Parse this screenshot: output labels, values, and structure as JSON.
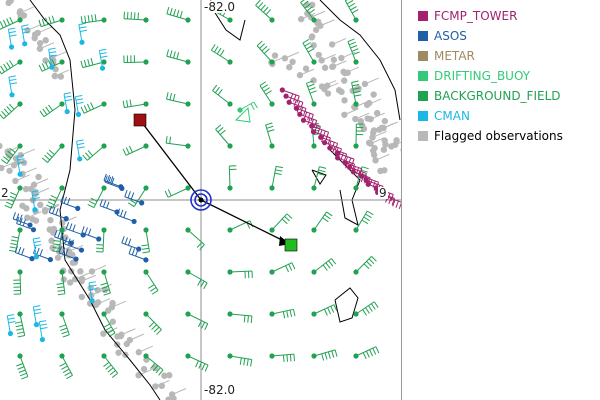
{
  "map": {
    "grid_labels": {
      "top_longitude": "-82.0",
      "bottom_longitude": "-82.0",
      "left_latitude": "2",
      "right_latitude": "9"
    },
    "colors": {
      "fcmp_tower": "#a3216e",
      "asos": "#1f5fa8",
      "metar": "#a08a62",
      "drifting_buoy": "#34c97a",
      "background_field": "#21a152",
      "cman": "#1bb8e6",
      "flagged": "#b8b8b8",
      "coastline": "#000000",
      "crosshair": "#8c8c8c",
      "selection_ring": "#2033c8",
      "track_start": "#a01010",
      "track_end": "#22bb22"
    }
  },
  "legend": {
    "items": [
      {
        "label": "FCMP_TOWER",
        "color": "#a3216e"
      },
      {
        "label": "ASOS",
        "color": "#1f5fa8"
      },
      {
        "label": "METAR",
        "color": "#a08a62"
      },
      {
        "label": "DRIFTING_BUOY",
        "color": "#34c97a"
      },
      {
        "label": "BACKGROUND_FIELD",
        "color": "#21a152"
      },
      {
        "label": "CMAN",
        "color": "#1bb8e6"
      },
      {
        "label": "Flagged observations",
        "color": "#b8b8b8"
      }
    ]
  }
}
